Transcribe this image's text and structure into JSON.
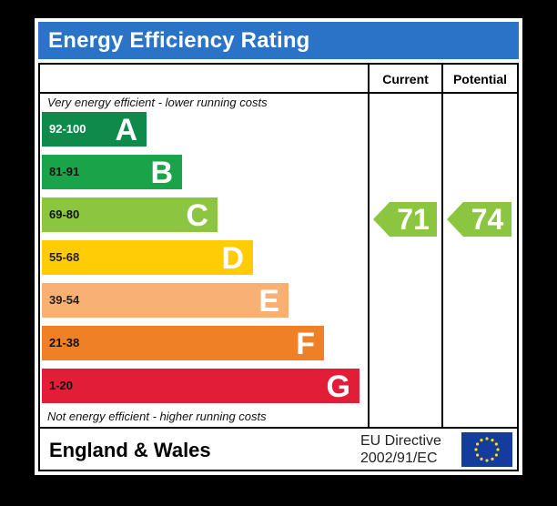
{
  "title": "Energy Efficiency Rating",
  "columns": {
    "current_label": "Current",
    "potential_label": "Potential"
  },
  "notes": {
    "top": "Very energy efficient - lower running costs",
    "bottom": "Not energy efficient - higher running costs"
  },
  "region": "England & Wales",
  "directive": {
    "line1": "EU Directive",
    "line2": "2002/91/EC"
  },
  "colors": {
    "title_bar": "#2b73c7",
    "A": "#0f8a4a",
    "B": "#1ba34a",
    "C": "#8cc540",
    "D": "#ffcc05",
    "E": "#f9b075",
    "F": "#ef8025",
    "G": "#e11d37",
    "eu_flag": "#143c9c",
    "eu_stars": "#ffde00"
  },
  "chart_data": {
    "type": "bar",
    "title": "Energy Efficiency Rating",
    "bands": [
      {
        "letter": "A",
        "range": "92-100",
        "min": 92,
        "max": 100
      },
      {
        "letter": "B",
        "range": "81-91",
        "min": 81,
        "max": 91
      },
      {
        "letter": "C",
        "range": "69-80",
        "min": 69,
        "max": 80
      },
      {
        "letter": "D",
        "range": "55-68",
        "min": 55,
        "max": 68
      },
      {
        "letter": "E",
        "range": "39-54",
        "min": 39,
        "max": 54
      },
      {
        "letter": "F",
        "range": "21-38",
        "min": 21,
        "max": 38
      },
      {
        "letter": "G",
        "range": "1-20",
        "min": 1,
        "max": 20
      }
    ],
    "current": {
      "value": 71,
      "band": "C"
    },
    "potential": {
      "value": 74,
      "band": "C"
    }
  }
}
